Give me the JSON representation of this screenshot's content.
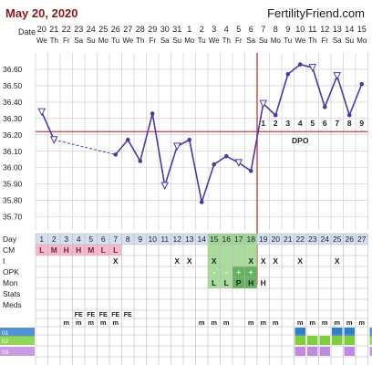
{
  "header": {
    "date": "May 20, 2020",
    "brand": "FertilityFriend.com"
  },
  "row_labels": {
    "date": "Date",
    "day": "Day",
    "cm": "CM",
    "i": "I",
    "opk": "OPK",
    "mon": "Mon",
    "stats": "Stats",
    "meds": "Meds"
  },
  "dates": [
    "20",
    "21",
    "22",
    "23",
    "24",
    "25",
    "26",
    "27",
    "28",
    "29",
    "30",
    "31",
    "1",
    "2",
    "3",
    "4",
    "5",
    "6",
    "7",
    "8",
    "9",
    "10",
    "11",
    "12",
    "13",
    "14",
    "15"
  ],
  "weekdays": [
    "We",
    "Th",
    "Fr",
    "Sa",
    "Su",
    "Mo",
    "Tu",
    "We",
    "Th",
    "Fr",
    "Sa",
    "Su",
    "Mo",
    "Tu",
    "We",
    "Th",
    "Fr",
    "Sa",
    "Su",
    "Mo",
    "Tu",
    "We",
    "Th",
    "Fr",
    "Sa",
    "Su",
    "Mo"
  ],
  "days": [
    "1",
    "2",
    "3",
    "4",
    "5",
    "6",
    "7",
    "8",
    "9",
    "10",
    "11",
    "12",
    "13",
    "14",
    "15",
    "16",
    "17",
    "18",
    "19",
    "20",
    "21",
    "22",
    "23",
    "24",
    "25",
    "26",
    "27"
  ],
  "dpo_label": "DPO",
  "dpo_numbers": [
    "1",
    "2",
    "3",
    "4",
    "5",
    "6",
    "7",
    "8",
    "9"
  ],
  "cm": [
    "L",
    "M",
    "H",
    "H",
    "M",
    "L",
    "L",
    "",
    "",
    "",
    "",
    "",
    "",
    "",
    "",
    "",
    "",
    "",
    "",
    "",
    "",
    "",
    "",
    "",
    "",
    "",
    ""
  ],
  "intercourse": [
    "",
    "",
    "",
    "",
    "",
    "",
    "X",
    "",
    "",
    "",
    "",
    "X",
    "X",
    "",
    "X",
    "",
    "",
    "X",
    "X",
    "X",
    "",
    "X",
    "",
    "",
    "X",
    "",
    ""
  ],
  "opk": [
    "",
    "",
    "",
    "",
    "",
    "",
    "",
    "",
    "",
    "",
    "",
    "",
    "",
    "",
    "-",
    "-",
    "+",
    "+",
    "+",
    "",
    "",
    "",
    "",
    "",
    "",
    "",
    ""
  ],
  "mon": [
    "",
    "",
    "",
    "",
    "",
    "",
    "",
    "",
    "",
    "",
    "",
    "",
    "",
    "",
    "L",
    "L",
    "P",
    "H",
    "H",
    "",
    "",
    "",
    "",
    "",
    "",
    "",
    ""
  ],
  "meds1": [
    "",
    "",
    "",
    "FE",
    "FE",
    "FE",
    "FE",
    "FE",
    "",
    "",
    "",
    "",
    "",
    "",
    "",
    "",
    "",
    "",
    "",
    "",
    "",
    "",
    "",
    "",
    "",
    "",
    ""
  ],
  "meds2": [
    "",
    "",
    "m",
    "m",
    "m",
    "m",
    "m",
    "",
    "",
    "",
    "",
    "",
    "",
    "m",
    "m",
    "m",
    "",
    "m",
    "m",
    "m",
    "",
    "m",
    "m",
    "m",
    "m",
    "m",
    "m"
  ],
  "chart_data": {
    "type": "line",
    "y_ticks": [
      "36.60",
      "36.50",
      "36.40",
      "36.30",
      "36.20",
      "36.10",
      "36.00",
      "35.90",
      "35.80",
      "35.70"
    ],
    "ylim": [
      35.62,
      36.7
    ],
    "coverline": 36.22,
    "ovulation_day": 18,
    "temps": [
      36.34,
      36.17,
      null,
      null,
      null,
      null,
      36.08,
      36.17,
      36.04,
      36.33,
      35.89,
      36.13,
      36.17,
      35.79,
      36.02,
      36.07,
      36.03,
      35.98,
      36.39,
      36.32,
      36.57,
      36.63,
      36.61,
      36.37,
      36.56,
      36.32,
      36.51
    ],
    "open_markers": [
      1,
      2,
      11,
      12,
      17,
      19,
      23,
      25
    ],
    "dashed_segment_days": [
      2,
      7
    ],
    "colors": {
      "line": "#4a3aa8",
      "coverline": "#d23a3a",
      "grid": "#c9c9c9",
      "band": "#8fd07c",
      "day_header": "#d6dff0",
      "cm_fill": "#f6b8cc"
    }
  },
  "colors": {
    "status_blue": "#2f7fd0",
    "status_green": "#7fcf3a",
    "status_purple": "#c08ae0"
  }
}
